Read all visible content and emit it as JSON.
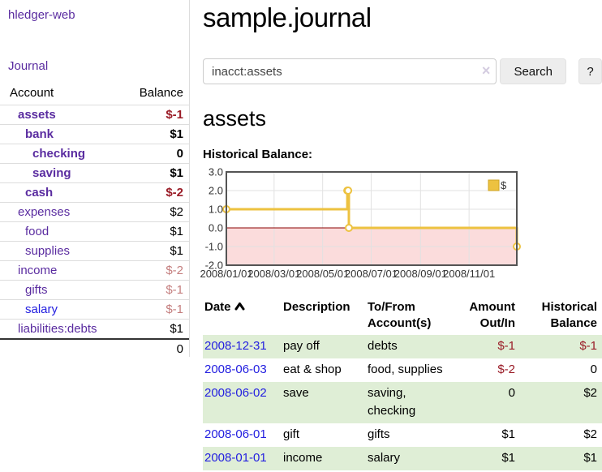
{
  "app": {
    "brand": "hledger-web",
    "nav": {
      "journal": "Journal"
    }
  },
  "sidebar": {
    "table_headers": {
      "account": "Account",
      "balance": "Balance"
    },
    "accounts": [
      {
        "name": "assets",
        "level": 1,
        "bold": true,
        "name_color": "purple",
        "balance": "$-1",
        "balance_style": "neg-strong"
      },
      {
        "name": "bank",
        "level": 2,
        "bold": true,
        "name_color": "purple",
        "balance": "$1",
        "balance_style": "pos"
      },
      {
        "name": "checking",
        "level": 3,
        "bold": true,
        "name_color": "purple",
        "balance": "0",
        "balance_style": "pos"
      },
      {
        "name": "saving",
        "level": 3,
        "bold": true,
        "name_color": "purple",
        "balance": "$1",
        "balance_style": "pos"
      },
      {
        "name": "cash",
        "level": 2,
        "bold": true,
        "name_color": "purple",
        "balance": "$-2",
        "balance_style": "neg-strong"
      },
      {
        "name": "expenses",
        "level": 1,
        "bold": false,
        "name_color": "purple",
        "balance": "$2",
        "balance_style": "pos"
      },
      {
        "name": "food",
        "level": 2,
        "bold": false,
        "name_color": "purple",
        "balance": "$1",
        "balance_style": "pos"
      },
      {
        "name": "supplies",
        "level": 2,
        "bold": false,
        "name_color": "purple",
        "balance": "$1",
        "balance_style": "pos"
      },
      {
        "name": "income",
        "level": 1,
        "bold": false,
        "name_color": "purple",
        "balance": "$-2",
        "balance_style": "neg-soft"
      },
      {
        "name": "gifts",
        "level": 2,
        "bold": false,
        "name_color": "purple",
        "balance": "$-1",
        "balance_style": "neg-soft"
      },
      {
        "name": "salary",
        "level": 2,
        "bold": false,
        "name_color": "blue",
        "balance": "$-1",
        "balance_style": "neg-soft"
      },
      {
        "name": "liabilities:debts",
        "level": 1,
        "bold": false,
        "name_color": "purple",
        "balance": "$1",
        "balance_style": "pos"
      }
    ],
    "total": "0"
  },
  "header": {
    "title": "sample.journal"
  },
  "search": {
    "query": "inacct:assets",
    "clear_icon": "×",
    "button_label": "Search",
    "help_label": "?"
  },
  "account_page": {
    "title": "assets",
    "section_label": "Historical Balance:"
  },
  "chart_data": {
    "type": "line",
    "step": true,
    "title": "Historical Balance",
    "x_start": "2008-01-01",
    "x_end": "2008-12-31",
    "ylim": [
      -2,
      3
    ],
    "yticks": [
      3,
      2,
      1,
      0,
      -1,
      -2
    ],
    "xticks": [
      "2008/01/01",
      "2008/03/01",
      "2008/05/01",
      "2008/07/01",
      "2008/09/01",
      "2008/11/01"
    ],
    "series": [
      {
        "name": "$",
        "color": "#edc240",
        "points": [
          [
            "2008-01-01",
            1
          ],
          [
            "2008-06-01",
            2
          ],
          [
            "2008-06-02",
            2
          ],
          [
            "2008-06-03",
            0
          ],
          [
            "2008-12-31",
            -1
          ]
        ]
      }
    ],
    "legend_position": "top-right",
    "grid": true,
    "negative_fill": "#fbdcdc",
    "zero_line_color": "#8b0000"
  },
  "register": {
    "columns": [
      {
        "line1": "Date",
        "line2": "",
        "sorted_asc": true
      },
      {
        "line1": "Description",
        "line2": ""
      },
      {
        "line1": "To/From",
        "line2": "Account(s)"
      },
      {
        "line1": "Amount",
        "line2": "Out/In"
      },
      {
        "line1": "Historical",
        "line2": "Balance"
      }
    ],
    "rows": [
      {
        "date": "2008-12-31",
        "description": "pay off",
        "accounts": "debts",
        "amount": "$-1",
        "amount_neg": true,
        "balance": "$-1",
        "balance_neg": true,
        "shaded": true
      },
      {
        "date": "2008-06-03",
        "description": "eat & shop",
        "accounts": "food, supplies",
        "amount": "$-2",
        "amount_neg": true,
        "balance": "0",
        "balance_neg": false,
        "shaded": false
      },
      {
        "date": "2008-06-02",
        "description": "save",
        "accounts": "saving, checking",
        "amount": "0",
        "amount_neg": false,
        "balance": "$2",
        "balance_neg": false,
        "shaded": true
      },
      {
        "date": "2008-06-01",
        "description": "gift",
        "accounts": "gifts",
        "amount": "$1",
        "amount_neg": false,
        "balance": "$2",
        "balance_neg": false,
        "shaded": false
      },
      {
        "date": "2008-01-01",
        "description": "income",
        "accounts": "salary",
        "amount": "$1",
        "amount_neg": false,
        "balance": "$1",
        "balance_neg": false,
        "shaded": true
      }
    ]
  }
}
